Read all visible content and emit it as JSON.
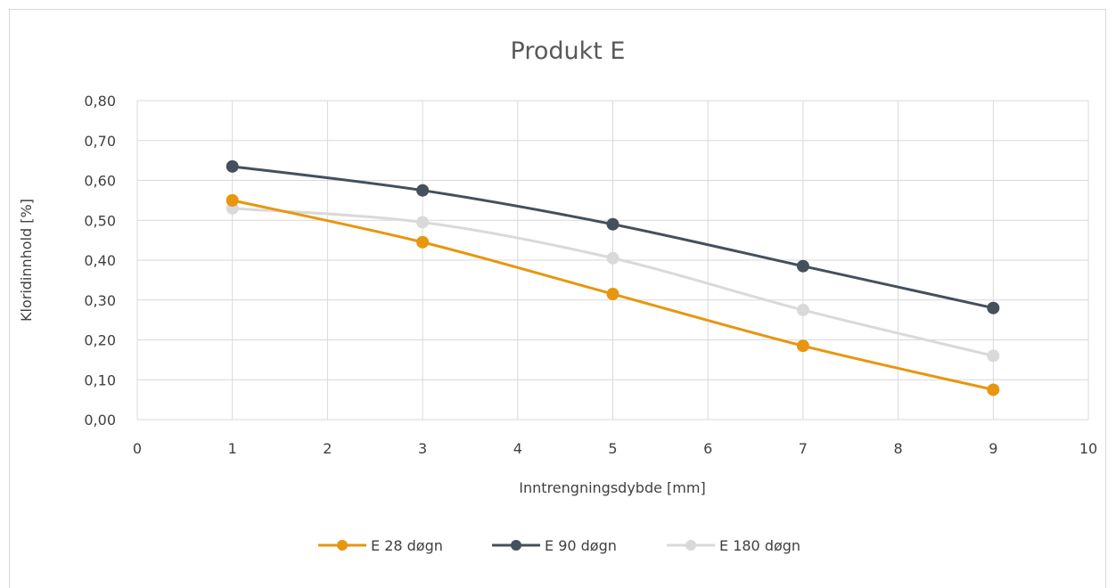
{
  "chart_data": {
    "type": "line",
    "title": "Produkt E",
    "xlabel": "Inntrengningsdybde [mm]",
    "ylabel": "Kloridinnhold [%]",
    "xlim": [
      0,
      10
    ],
    "ylim": [
      0,
      0.8
    ],
    "x_ticks": [
      "0",
      "1",
      "2",
      "3",
      "4",
      "5",
      "6",
      "7",
      "8",
      "9",
      "10"
    ],
    "y_ticks": [
      "0,00",
      "0,10",
      "0,20",
      "0,30",
      "0,40",
      "0,50",
      "0,60",
      "0,70",
      "0,80"
    ],
    "grid": true,
    "legend_position": "bottom",
    "x": [
      1,
      3,
      5,
      7,
      9
    ],
    "series": [
      {
        "name": "E 28 døgn",
        "color": "#e8960f",
        "values": [
          0.55,
          0.445,
          0.315,
          0.185,
          0.075
        ]
      },
      {
        "name": "E 90 døgn",
        "color": "#44505c",
        "values": [
          0.635,
          0.575,
          0.49,
          0.385,
          0.28
        ]
      },
      {
        "name": "E 180 døgn",
        "color": "#d9d9d9",
        "values": [
          0.53,
          0.495,
          0.405,
          0.275,
          0.16
        ]
      }
    ]
  }
}
